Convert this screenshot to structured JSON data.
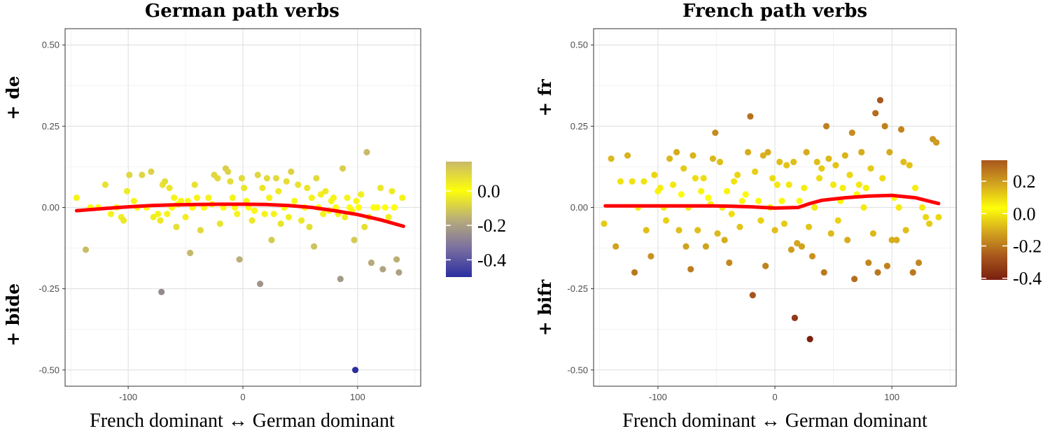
{
  "chart_data": [
    {
      "type": "scatter",
      "title": "German path verbs",
      "xlabel": "French dominant ↔ German dominant",
      "ylabel_top": "+ de",
      "ylabel_bottom": "+ bide",
      "xlim": [
        -155,
        155
      ],
      "ylim": [
        -0.55,
        0.55
      ],
      "xticks": [
        -100,
        0,
        100
      ],
      "yticks": [
        -0.5,
        -0.25,
        0.0,
        0.25,
        0.5
      ],
      "xtick_labels": [
        "-100",
        "0",
        "100"
      ],
      "ytick_labels": [
        "-0.50",
        "-0.25",
        "0.00",
        "0.25",
        "0.50"
      ],
      "grid": true,
      "colorbar": {
        "position": "right",
        "ticks": [
          0.0,
          -0.2,
          -0.4
        ],
        "tick_labels": [
          "0.0",
          "-0.2",
          "-0.4"
        ],
        "range": [
          -0.5,
          0.17
        ],
        "colors": [
          "#2b2fa0",
          "#7a6fa0",
          "#b9ad7a",
          "#fefe0a",
          "#c9b96a"
        ]
      },
      "smooth": {
        "color": "#ff0000",
        "x": [
          -145,
          -120,
          -100,
          -80,
          -60,
          -40,
          -20,
          0,
          20,
          40,
          60,
          80,
          100,
          120,
          140
        ],
        "y": [
          -0.01,
          -0.003,
          0.002,
          0.006,
          0.008,
          0.009,
          0.01,
          0.01,
          0.009,
          0.006,
          0.0,
          -0.01,
          -0.022,
          -0.038,
          -0.058
        ]
      },
      "points": [
        [
          -145,
          0.03
        ],
        [
          -137,
          -0.13
        ],
        [
          -133,
          0.0
        ],
        [
          -126,
          0.0
        ],
        [
          -120,
          0.07
        ],
        [
          -115,
          -0.02
        ],
        [
          -110,
          0.0
        ],
        [
          -106,
          -0.03
        ],
        [
          -104,
          -0.04
        ],
        [
          -101,
          0.05
        ],
        [
          -99,
          0.1
        ],
        [
          -95,
          0.02
        ],
        [
          -92,
          0.0
        ],
        [
          -88,
          0.1
        ],
        [
          -84,
          0.0
        ],
        [
          -80,
          0.11
        ],
        [
          -78,
          -0.03
        ],
        [
          -74,
          -0.02
        ],
        [
          -72,
          -0.04
        ],
        [
          -71,
          -0.26
        ],
        [
          -70,
          0.07
        ],
        [
          -68,
          0.08
        ],
        [
          -66,
          -0.02
        ],
        [
          -64,
          0.06
        ],
        [
          -62,
          0.0
        ],
        [
          -60,
          0.03
        ],
        [
          -58,
          -0.06
        ],
        [
          -57,
          0.01
        ],
        [
          -54,
          0.02
        ],
        [
          -50,
          -0.03
        ],
        [
          -48,
          0.02
        ],
        [
          -46,
          -0.14
        ],
        [
          -44,
          0.0
        ],
        [
          -42,
          0.07
        ],
        [
          -40,
          0.03
        ],
        [
          -37,
          -0.07
        ],
        [
          -34,
          0.0
        ],
        [
          -30,
          0.03
        ],
        [
          -27,
          0.01
        ],
        [
          -25,
          0.1
        ],
        [
          -22,
          0.09
        ],
        [
          -20,
          -0.05
        ],
        [
          -17,
          0.0
        ],
        [
          -15,
          0.12
        ],
        [
          -13,
          0.11
        ],
        [
          -11,
          0.08
        ],
        [
          -9,
          0.03
        ],
        [
          -7,
          0.0
        ],
        [
          -5,
          -0.02
        ],
        [
          -3,
          -0.16
        ],
        [
          -1,
          0.09
        ],
        [
          1,
          0.06
        ],
        [
          3,
          0.02
        ],
        [
          5,
          0.0
        ],
        [
          8,
          -0.04
        ],
        [
          10,
          -0.01
        ],
        [
          13,
          0.1
        ],
        [
          15,
          -0.235
        ],
        [
          17,
          0.06
        ],
        [
          19,
          -0.02
        ],
        [
          21,
          0.09
        ],
        [
          23,
          0.03
        ],
        [
          25,
          -0.1
        ],
        [
          27,
          -0.02
        ],
        [
          29,
          0.09
        ],
        [
          31,
          0.05
        ],
        [
          33,
          -0.05
        ],
        [
          36,
          0.0
        ],
        [
          38,
          0.08
        ],
        [
          40,
          -0.03
        ],
        [
          42,
          0.11
        ],
        [
          45,
          0.02
        ],
        [
          48,
          0.07
        ],
        [
          51,
          -0.04
        ],
        [
          54,
          0.0
        ],
        [
          56,
          0.06
        ],
        [
          58,
          -0.06
        ],
        [
          60,
          0.03
        ],
        [
          62,
          -0.12
        ],
        [
          64,
          0.09
        ],
        [
          66,
          0.0
        ],
        [
          68,
          0.04
        ],
        [
          70,
          -0.02
        ],
        [
          72,
          0.05
        ],
        [
          75,
          -0.01
        ],
        [
          77,
          0.02
        ],
        [
          79,
          0.03
        ],
        [
          81,
          0.0
        ],
        [
          83,
          -0.02
        ],
        [
          85,
          -0.22
        ],
        [
          87,
          0.12
        ],
        [
          89,
          -0.03
        ],
        [
          91,
          0.03
        ],
        [
          93,
          0.0
        ],
        [
          95,
          -0.01
        ],
        [
          97,
          -0.1
        ],
        [
          98,
          -0.5
        ],
        [
          99,
          0.02
        ],
        [
          101,
          0.0
        ],
        [
          103,
          0.04
        ],
        [
          106,
          -0.06
        ],
        [
          108,
          0.17
        ],
        [
          110,
          -0.03
        ],
        [
          112,
          -0.17
        ],
        [
          114,
          0.0
        ],
        [
          117,
          0.0
        ],
        [
          120,
          0.06
        ],
        [
          122,
          -0.19
        ],
        [
          124,
          0.0
        ],
        [
          127,
          -0.03
        ],
        [
          130,
          0.05
        ],
        [
          132,
          0.0
        ],
        [
          134,
          -0.16
        ],
        [
          136,
          -0.2
        ],
        [
          139,
          0.03
        ]
      ]
    },
    {
      "type": "scatter",
      "title": "French path verbs",
      "xlabel": "French dominant ↔ German dominant",
      "ylabel_top": "+ fr",
      "ylabel_bottom": "+ bifr",
      "xlim": [
        -155,
        155
      ],
      "ylim": [
        -0.55,
        0.55
      ],
      "xticks": [
        -100,
        0,
        100
      ],
      "yticks": [
        -0.5,
        -0.25,
        0.0,
        0.25,
        0.5
      ],
      "xtick_labels": [
        "-100",
        "0",
        "100"
      ],
      "ytick_labels": [
        "-0.50",
        "-0.25",
        "0.00",
        "0.25",
        "0.50"
      ],
      "grid": true,
      "colorbar": {
        "position": "right",
        "ticks": [
          0.2,
          0.0,
          -0.2,
          -0.4
        ],
        "tick_labels": [
          "0.2",
          "0.0",
          "-0.2",
          "-0.4"
        ],
        "range": [
          -0.41,
          0.33
        ],
        "colors": [
          "#7a1f10",
          "#a8571d",
          "#d3a51f",
          "#fefe0a",
          "#d3a51f",
          "#a8571d"
        ]
      },
      "smooth": {
        "color": "#ff0000",
        "x": [
          -145,
          -120,
          -100,
          -80,
          -60,
          -40,
          -20,
          0,
          20,
          30,
          40,
          60,
          80,
          100,
          120,
          140
        ],
        "y": [
          0.005,
          0.005,
          0.005,
          0.005,
          0.005,
          0.004,
          0.002,
          -0.002,
          0.0,
          0.012,
          0.022,
          0.03,
          0.035,
          0.037,
          0.03,
          0.012
        ]
      },
      "points": [
        [
          -146,
          -0.05
        ],
        [
          -140,
          0.15
        ],
        [
          -136,
          -0.12
        ],
        [
          -132,
          0.08
        ],
        [
          -126,
          0.16
        ],
        [
          -122,
          0.08
        ],
        [
          -120,
          -0.2
        ],
        [
          -117,
          0.0
        ],
        [
          -112,
          0.08
        ],
        [
          -110,
          -0.07
        ],
        [
          -106,
          -0.15
        ],
        [
          -103,
          0.1
        ],
        [
          -100,
          0.05
        ],
        [
          -98,
          0.06
        ],
        [
          -95,
          0.0
        ],
        [
          -93,
          -0.04
        ],
        [
          -90,
          0.15
        ],
        [
          -87,
          0.07
        ],
        [
          -84,
          0.17
        ],
        [
          -82,
          -0.07
        ],
        [
          -80,
          0.04
        ],
        [
          -78,
          0.12
        ],
        [
          -76,
          -0.12
        ],
        [
          -74,
          0.0
        ],
        [
          -72,
          -0.19
        ],
        [
          -70,
          0.16
        ],
        [
          -68,
          0.09
        ],
        [
          -66,
          -0.07
        ],
        [
          -63,
          0.05
        ],
        [
          -61,
          0.09
        ],
        [
          -59,
          -0.12
        ],
        [
          -57,
          0.03
        ],
        [
          -55,
          0.01
        ],
        [
          -53,
          0.15
        ],
        [
          -51,
          0.23
        ],
        [
          -49,
          -0.08
        ],
        [
          -47,
          0.14
        ],
        [
          -45,
          0.0
        ],
        [
          -43,
          -0.1
        ],
        [
          -41,
          0.05
        ],
        [
          -39,
          -0.17
        ],
        [
          -37,
          -0.02
        ],
        [
          -35,
          0.08
        ],
        [
          -32,
          0.1
        ],
        [
          -30,
          -0.06
        ],
        [
          -28,
          0.02
        ],
        [
          -25,
          0.04
        ],
        [
          -23,
          0.17
        ],
        [
          -21,
          0.28
        ],
        [
          -19,
          -0.27
        ],
        [
          -17,
          0.11
        ],
        [
          -14,
          0.02
        ],
        [
          -12,
          -0.04
        ],
        [
          -10,
          0.16
        ],
        [
          -8,
          -0.18
        ],
        [
          -6,
          0.17
        ],
        [
          -4,
          0.0
        ],
        [
          -2,
          0.09
        ],
        [
          0,
          -0.07
        ],
        [
          2,
          0.07
        ],
        [
          4,
          0.14
        ],
        [
          6,
          0.02
        ],
        [
          8,
          -0.05
        ],
        [
          10,
          0.13
        ],
        [
          12,
          0.07
        ],
        [
          14,
          -0.13
        ],
        [
          16,
          0.14
        ],
        [
          17,
          -0.34
        ],
        [
          19,
          -0.11
        ],
        [
          21,
          0.02
        ],
        [
          23,
          -0.12
        ],
        [
          25,
          0.06
        ],
        [
          27,
          0.17
        ],
        [
          29,
          -0.06
        ],
        [
          30,
          -0.405
        ],
        [
          32,
          -0.15
        ],
        [
          34,
          0.0
        ],
        [
          36,
          0.14
        ],
        [
          38,
          0.09
        ],
        [
          40,
          0.12
        ],
        [
          42,
          -0.2
        ],
        [
          44,
          0.25
        ],
        [
          46,
          0.15
        ],
        [
          48,
          -0.08
        ],
        [
          50,
          0.07
        ],
        [
          52,
          0.13
        ],
        [
          54,
          -0.04
        ],
        [
          56,
          0.02
        ],
        [
          58,
          0.06
        ],
        [
          60,
          0.16
        ],
        [
          62,
          -0.1
        ],
        [
          64,
          0.1
        ],
        [
          66,
          0.23
        ],
        [
          68,
          -0.22
        ],
        [
          70,
          0.04
        ],
        [
          72,
          0.07
        ],
        [
          74,
          0.17
        ],
        [
          76,
          0.0
        ],
        [
          78,
          0.06
        ],
        [
          80,
          -0.17
        ],
        [
          82,
          0.12
        ],
        [
          84,
          -0.08
        ],
        [
          86,
          0.29
        ],
        [
          88,
          -0.2
        ],
        [
          90,
          0.33
        ],
        [
          92,
          0.09
        ],
        [
          94,
          0.25
        ],
        [
          96,
          -0.18
        ],
        [
          98,
          0.17
        ],
        [
          100,
          -0.1
        ],
        [
          102,
          0.03
        ],
        [
          104,
          -0.1
        ],
        [
          106,
          0.0
        ],
        [
          108,
          0.24
        ],
        [
          110,
          0.14
        ],
        [
          112,
          -0.07
        ],
        [
          115,
          0.13
        ],
        [
          118,
          -0.2
        ],
        [
          120,
          0.06
        ],
        [
          123,
          -0.17
        ],
        [
          126,
          0.0
        ],
        [
          129,
          -0.03
        ],
        [
          132,
          -0.05
        ],
        [
          135,
          0.21
        ],
        [
          138,
          0.2
        ],
        [
          140,
          -0.03
        ]
      ]
    }
  ]
}
